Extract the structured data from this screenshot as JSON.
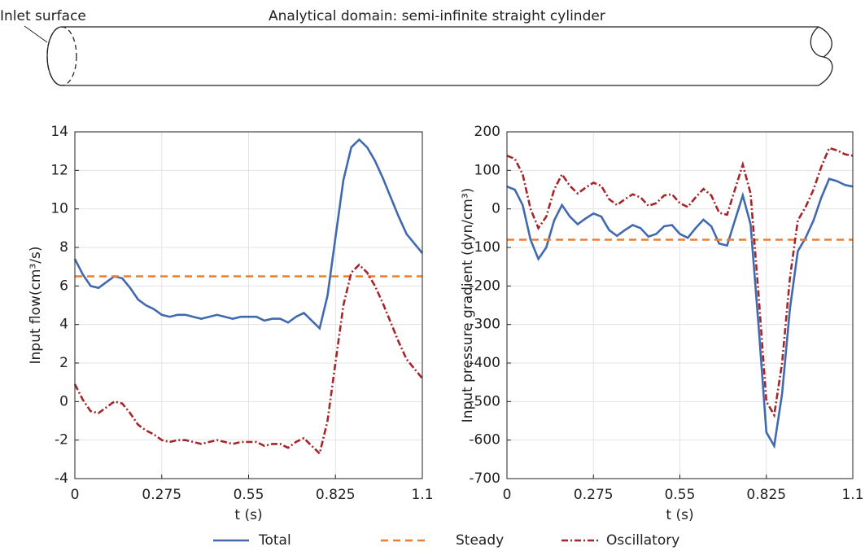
{
  "header": {
    "inlet_label": "Inlet surface",
    "domain_label": "Analytical domain: semi-infinite straight cylinder"
  },
  "chart_data": [
    {
      "type": "line",
      "ylabel": "Input flow(cm³/s)",
      "xlabel": "t (s)",
      "x": [
        0,
        0.025,
        0.05,
        0.075,
        0.1,
        0.125,
        0.15,
        0.175,
        0.2,
        0.225,
        0.25,
        0.275,
        0.3,
        0.325,
        0.35,
        0.375,
        0.4,
        0.425,
        0.45,
        0.475,
        0.5,
        0.525,
        0.55,
        0.575,
        0.6,
        0.625,
        0.65,
        0.675,
        0.7,
        0.725,
        0.75,
        0.775,
        0.8,
        0.825,
        0.85,
        0.875,
        0.9,
        0.925,
        0.95,
        0.975,
        1.0,
        1.025,
        1.05,
        1.075,
        1.1
      ],
      "xlim": [
        0,
        1.1
      ],
      "xticks": [
        0,
        0.275,
        0.55,
        0.825,
        1.1
      ],
      "ylim": [
        -4,
        14
      ],
      "yticks": [
        -4,
        -2,
        0,
        2,
        4,
        6,
        8,
        10,
        12,
        14
      ],
      "grid": true,
      "series": [
        {
          "name": "Total",
          "color": "#4169b0",
          "style": "solid",
          "values": [
            7.4,
            6.6,
            6.0,
            5.9,
            6.2,
            6.5,
            6.4,
            5.9,
            5.3,
            5.0,
            4.8,
            4.5,
            4.4,
            4.5,
            4.5,
            4.4,
            4.3,
            4.4,
            4.5,
            4.4,
            4.3,
            4.4,
            4.4,
            4.4,
            4.2,
            4.3,
            4.3,
            4.1,
            4.4,
            4.6,
            4.2,
            3.8,
            5.5,
            8.5,
            11.5,
            13.2,
            13.6,
            13.2,
            12.5,
            11.6,
            10.6,
            9.6,
            8.7,
            8.2,
            7.7
          ]
        },
        {
          "name": "Steady",
          "color": "#ed7d31",
          "style": "dashed",
          "x": [
            0,
            1.1
          ],
          "values": [
            6.5,
            6.5
          ]
        },
        {
          "name": "Oscillatory",
          "color": "#a3262a",
          "style": "dashdot",
          "values": [
            0.9,
            0.1,
            -0.5,
            -0.6,
            -0.3,
            0.0,
            -0.1,
            -0.6,
            -1.2,
            -1.5,
            -1.7,
            -2.0,
            -2.1,
            -2.0,
            -2.0,
            -2.1,
            -2.2,
            -2.1,
            -2.0,
            -2.1,
            -2.2,
            -2.1,
            -2.1,
            -2.1,
            -2.3,
            -2.2,
            -2.2,
            -2.4,
            -2.1,
            -1.9,
            -2.3,
            -2.7,
            -1.0,
            2.0,
            5.0,
            6.7,
            7.1,
            6.7,
            6.0,
            5.1,
            4.1,
            3.1,
            2.2,
            1.7,
            1.2
          ]
        }
      ]
    },
    {
      "type": "line",
      "ylabel": "Input pressure gradient (dyn/cm³)",
      "xlabel": "t (s)",
      "x": [
        0,
        0.025,
        0.05,
        0.075,
        0.1,
        0.125,
        0.15,
        0.175,
        0.2,
        0.225,
        0.25,
        0.275,
        0.3,
        0.325,
        0.35,
        0.375,
        0.4,
        0.425,
        0.45,
        0.475,
        0.5,
        0.525,
        0.55,
        0.575,
        0.6,
        0.625,
        0.65,
        0.675,
        0.7,
        0.725,
        0.75,
        0.775,
        0.8,
        0.825,
        0.85,
        0.875,
        0.9,
        0.925,
        0.95,
        0.975,
        1.0,
        1.025,
        1.05,
        1.075,
        1.1
      ],
      "xlim": [
        0,
        1.1
      ],
      "xticks": [
        0,
        0.275,
        0.55,
        0.825,
        1.1
      ],
      "ylim": [
        -700,
        200
      ],
      "yticks": [
        -700,
        -600,
        -500,
        -400,
        -300,
        -200,
        -100,
        0,
        100,
        200
      ],
      "grid": true,
      "series": [
        {
          "color": "#4169b0",
          "style": "solid",
          "values": [
            58,
            50,
            10,
            -80,
            -130,
            -100,
            -30,
            10,
            -20,
            -40,
            -25,
            -12,
            -20,
            -55,
            -70,
            -55,
            -42,
            -50,
            -72,
            -65,
            -45,
            -42,
            -65,
            -75,
            -50,
            -28,
            -45,
            -90,
            -95,
            -30,
            35,
            -40,
            -300,
            -580,
            -615,
            -480,
            -260,
            -110,
            -75,
            -30,
            30,
            78,
            72,
            62,
            58
          ]
        },
        {
          "color": "#ed7d31",
          "style": "dashed",
          "x": [
            0,
            1.1
          ],
          "values": [
            -80,
            -80
          ]
        },
        {
          "color": "#a3262a",
          "style": "dashdot",
          "values": [
            138,
            130,
            90,
            0,
            -50,
            -20,
            50,
            90,
            60,
            40,
            55,
            68,
            60,
            25,
            10,
            25,
            38,
            30,
            8,
            15,
            35,
            38,
            15,
            5,
            30,
            52,
            35,
            -10,
            -15,
            50,
            115,
            40,
            -220,
            -500,
            -535,
            -400,
            -180,
            -30,
            5,
            50,
            110,
            158,
            152,
            142,
            138
          ]
        }
      ]
    }
  ]
}
